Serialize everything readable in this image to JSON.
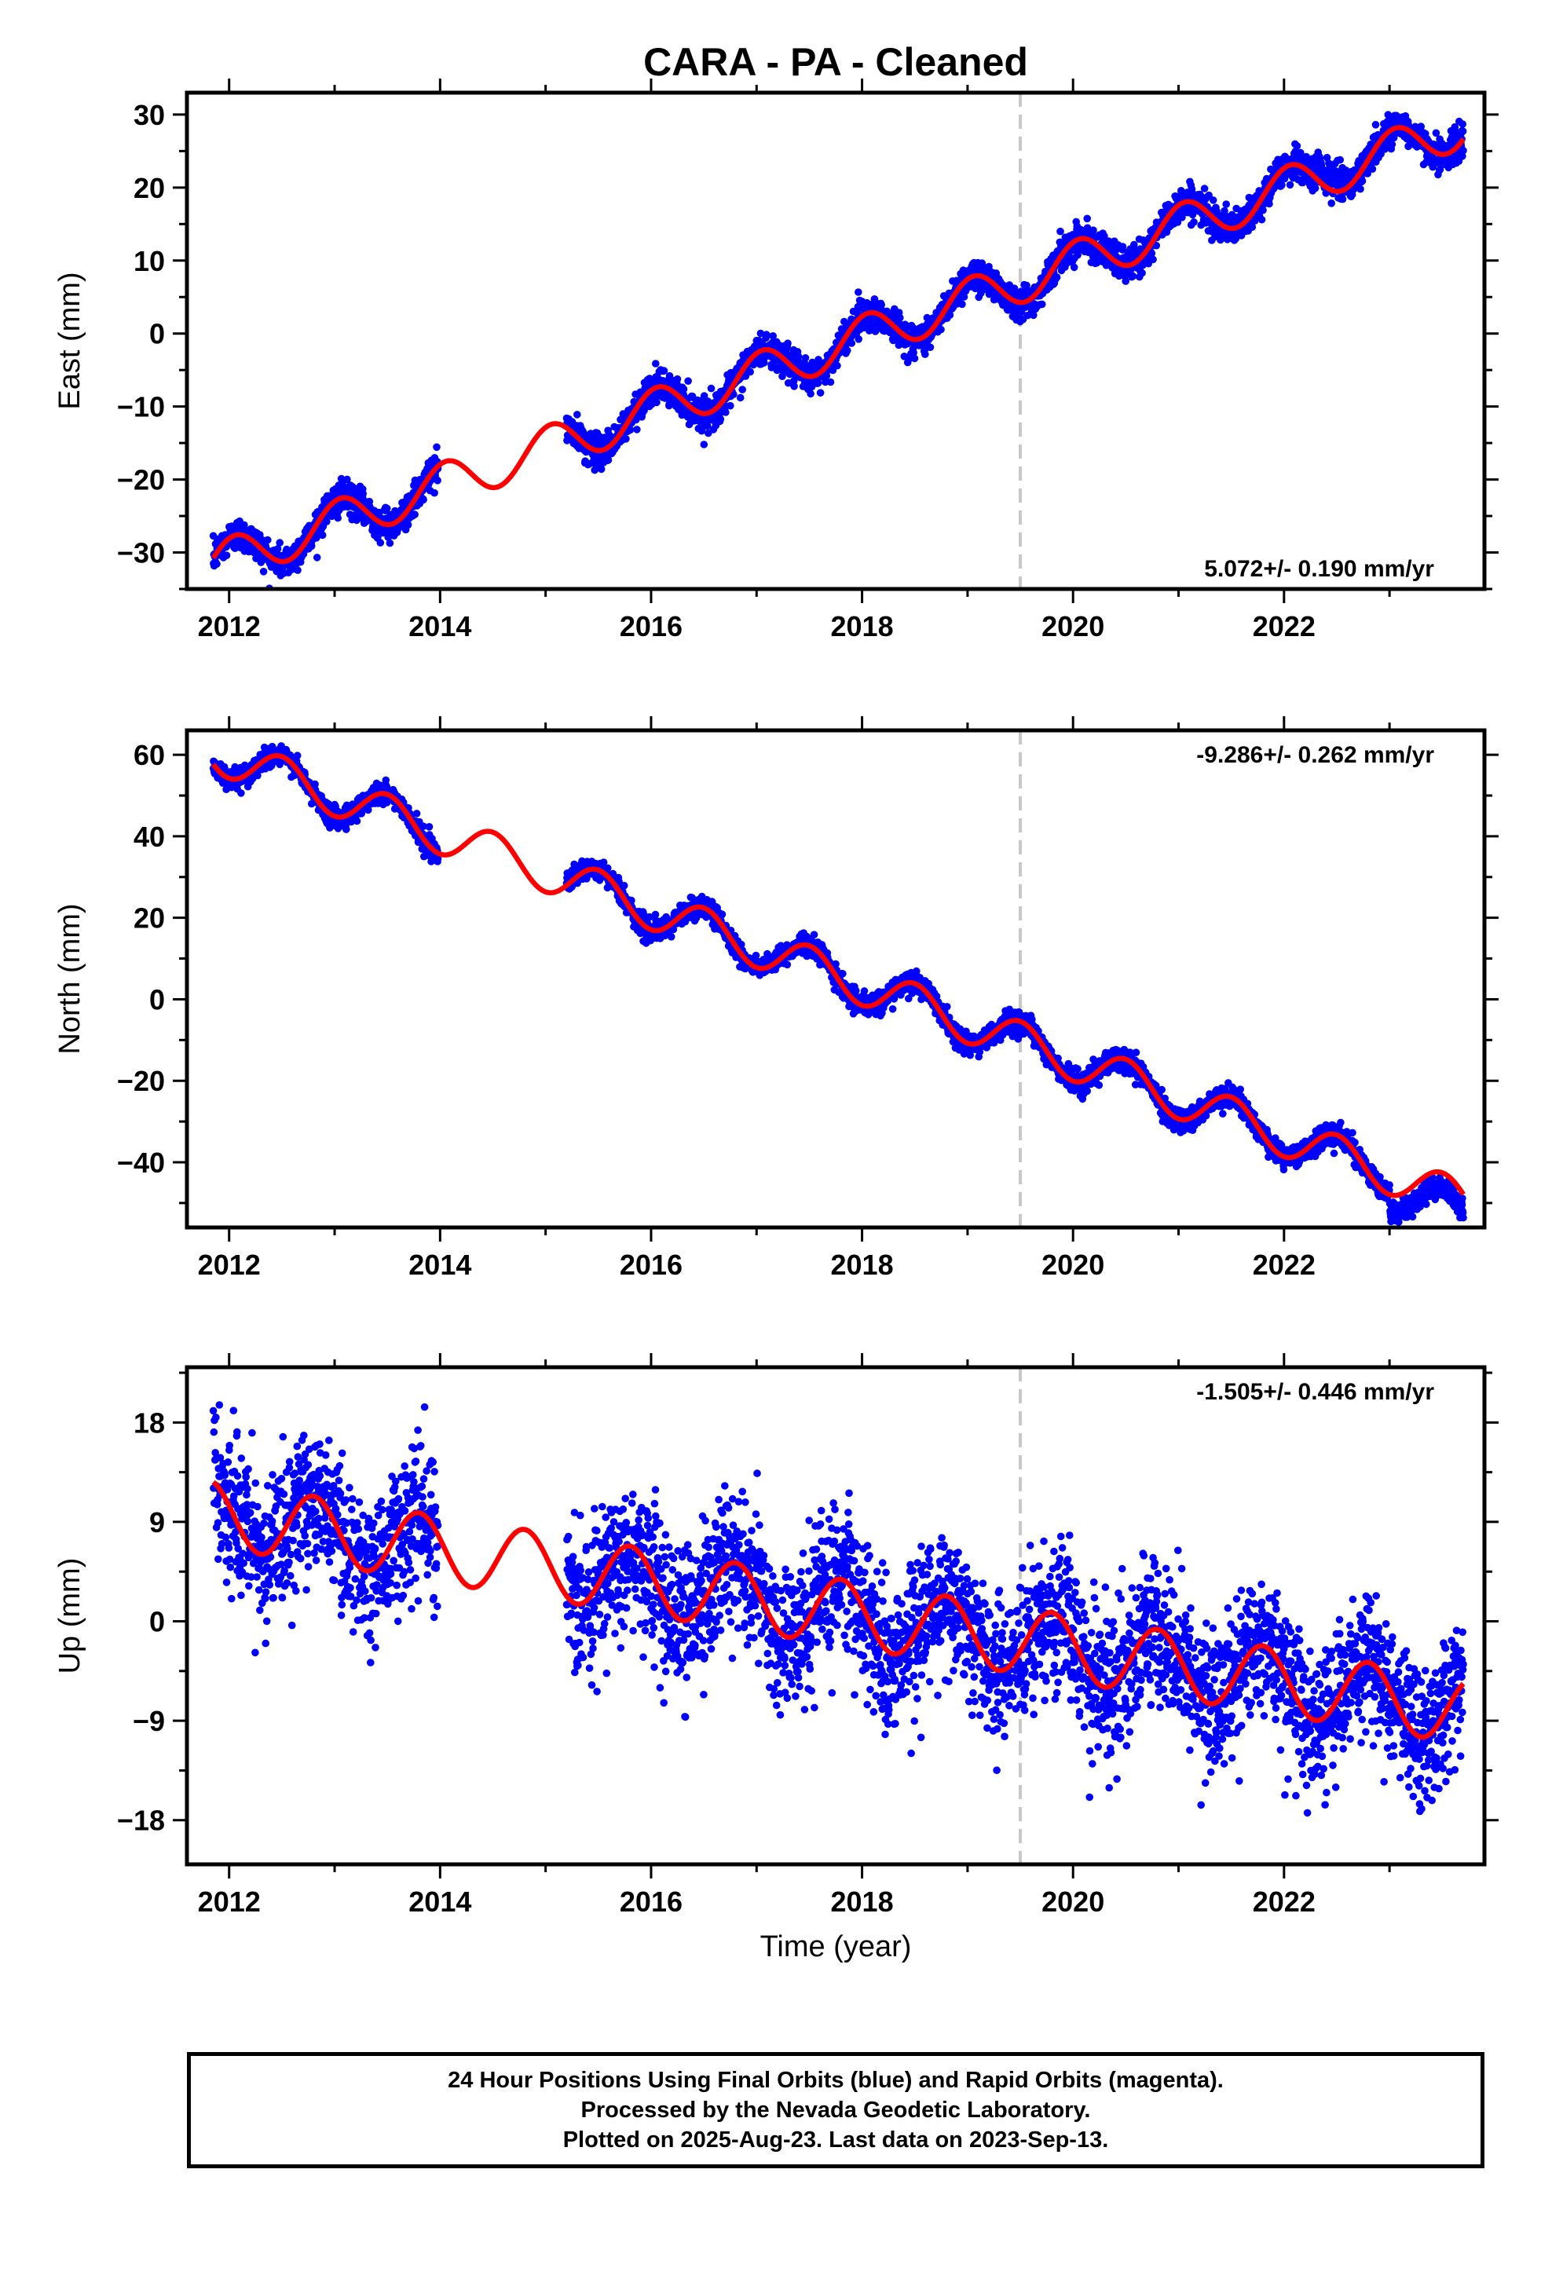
{
  "title": "CARA  - PA - Cleaned",
  "colors": {
    "points": "#0000ff",
    "model": "#ff0000",
    "event_line": "#c8c8c8",
    "frame": "#000000"
  },
  "footer": {
    "lines": [
      "24 Hour Positions Using Final Orbits (blue) and Rapid Orbits (magenta).",
      "Processed by the Nevada Geodetic Laboratory.",
      "Plotted on 2025-Aug-23. Last data on 2023-Sep-13."
    ]
  },
  "chart_data": [
    {
      "type": "scatter",
      "panel": "east",
      "title": "CARA  - PA - Cleaned",
      "xlabel": "",
      "ylabel": "East (mm)",
      "xlim": [
        2011.6,
        2023.9
      ],
      "ylim": [
        -35,
        33
      ],
      "xticks": [
        2012,
        2014,
        2016,
        2018,
        2020,
        2022
      ],
      "yticks": [
        -30,
        -20,
        -10,
        0,
        10,
        20,
        30
      ],
      "yticklabels": [
        "−30",
        "−20",
        "−10",
        "0",
        "10",
        "20",
        "30"
      ],
      "rate_label": "5.072+/- 0.190 mm/yr",
      "rate_position": "bottom-right",
      "event_lines": [
        2019.5
      ],
      "model": {
        "rate": 5.072,
        "ref_epoch": 2018.0,
        "offset": -0.5,
        "annual_amplitude": 3.0,
        "annual_phase_year": 0.05,
        "x_range": [
          2011.85,
          2023.7
        ]
      },
      "observations": {
        "series_name": "Final Orbits (blue)",
        "segments": [
          [
            2011.85,
            2013.98
          ],
          [
            2015.2,
            2023.7
          ]
        ],
        "scatter_sd": 1.1,
        "deviations": [
          {
            "x": [
              2022.3,
              2022.6
            ],
            "dy": 1.5
          }
        ]
      },
      "grid": false,
      "legend": "none"
    },
    {
      "type": "scatter",
      "panel": "north",
      "xlabel": "",
      "ylabel": "North (mm)",
      "xlim": [
        2011.6,
        2023.9
      ],
      "ylim": [
        -56,
        66
      ],
      "xticks": [
        2012,
        2014,
        2016,
        2018,
        2020,
        2022
      ],
      "yticks": [
        -40,
        -20,
        0,
        20,
        40,
        60
      ],
      "yticklabels": [
        "−40",
        "−20",
        "0",
        "20",
        "40",
        "60"
      ],
      "rate_label": "-9.286+/- 0.262 mm/yr",
      "rate_position": "top-right",
      "event_lines": [
        2019.5
      ],
      "model": {
        "rate": -9.286,
        "ref_epoch": 2018.0,
        "offset": 3.5,
        "annual_amplitude": 5.0,
        "annual_phase_year": 0.5,
        "x_range": [
          2011.85,
          2023.7
        ]
      },
      "observations": {
        "series_name": "Final Orbits (blue)",
        "segments": [
          [
            2011.85,
            2013.98
          ],
          [
            2015.2,
            2023.7
          ]
        ],
        "scatter_sd": 1.3,
        "deviations": [
          {
            "x": [
              2023.0,
              2023.7
            ],
            "dy": -4.0
          }
        ]
      },
      "grid": false,
      "legend": "none"
    },
    {
      "type": "scatter",
      "panel": "up",
      "xlabel": "Time (year)",
      "ylabel": "Up (mm)",
      "xlim": [
        2011.6,
        2023.9
      ],
      "ylim": [
        -22,
        23
      ],
      "xticks": [
        2012,
        2014,
        2016,
        2018,
        2020,
        2022
      ],
      "yticks": [
        -18,
        -9,
        0,
        9,
        18
      ],
      "yticklabels": [
        "−18",
        "−9",
        "0",
        "9",
        "18"
      ],
      "rate_label": "-1.505+/- 0.446 mm/yr",
      "rate_position": "top-right",
      "event_lines": [
        2019.5
      ],
      "model": {
        "rate": -1.505,
        "ref_epoch": 2018.0,
        "offset": 0.5,
        "annual_amplitude": 3.0,
        "annual_phase_year": 0.8,
        "x_range": [
          2011.85,
          2023.7
        ]
      },
      "observations": {
        "series_name": "Final Orbits (blue)",
        "segments": [
          [
            2011.85,
            2013.98
          ],
          [
            2015.2,
            2023.7
          ]
        ],
        "scatter_sd": 3.2,
        "deviations": []
      },
      "grid": false,
      "legend": "none"
    }
  ]
}
